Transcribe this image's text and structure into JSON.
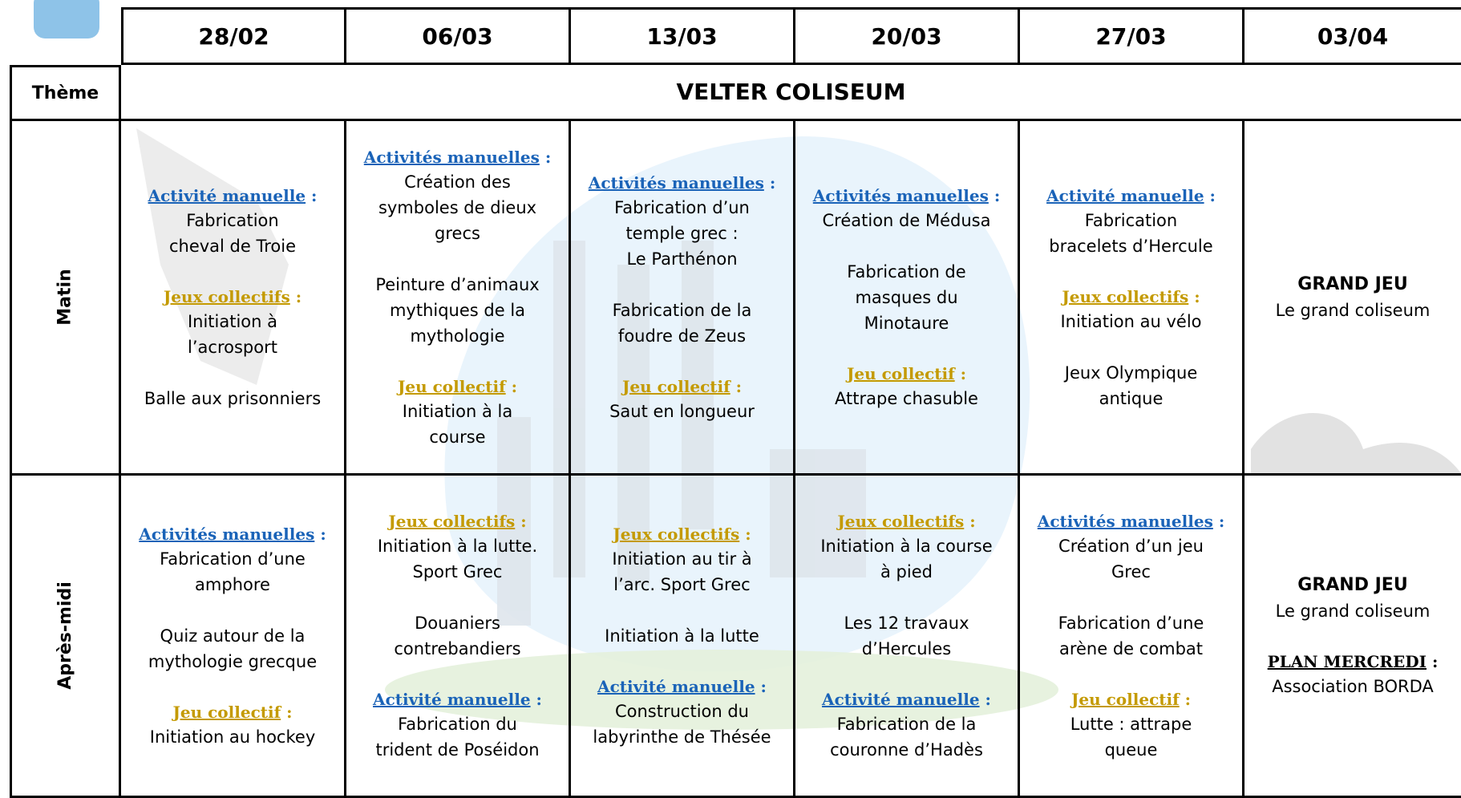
{
  "header": {
    "dates": [
      "28/02",
      "06/03",
      "13/03",
      "20/03",
      "27/03",
      "03/04"
    ]
  },
  "theme": {
    "label": "Thème",
    "value": "VELTER COLISEUM"
  },
  "rows": [
    {
      "label": "Matin",
      "cells": [
        [
          {
            "heading": "Activité manuelle",
            "punct": ":",
            "color": "#1a63b8",
            "lines": [
              "Fabrication",
              "cheval de Troie"
            ]
          },
          {
            "heading": "Jeux collectifs",
            "punct": ":",
            "color": "#c49a00",
            "lines": [
              "Initiation à",
              "l’acrosport"
            ]
          },
          {
            "lines": [
              "Balle aux prisonniers"
            ]
          }
        ],
        [
          {
            "heading": "Activités manuelles",
            "punct": ":",
            "color": "#1a63b8",
            "lines": [
              "Création des",
              "symboles de dieux",
              "grecs"
            ]
          },
          {
            "lines": [
              "Peinture d’animaux",
              "mythiques de la",
              "mythologie"
            ]
          },
          {
            "heading": "Jeu collectif",
            "punct": ":",
            "color": "#c49a00",
            "lines": [
              "Initiation à la",
              "course"
            ]
          }
        ],
        [
          {
            "heading": "Activités manuelles",
            "punct": ":",
            "color": "#1a63b8",
            "lines": [
              "Fabrication d’un",
              "temple grec :",
              "Le Parthénon"
            ]
          },
          {
            "lines": [
              "Fabrication de la",
              "foudre de Zeus"
            ]
          },
          {
            "heading": "Jeu collectif",
            "punct": ":",
            "color": "#c49a00",
            "lines": [
              "Saut en longueur"
            ]
          }
        ],
        [
          {
            "heading": "Activités manuelles",
            "punct": ":",
            "color": "#1a63b8",
            "lines": [
              "Création de Médusa"
            ]
          },
          {
            "lines": [
              "Fabrication de",
              "masques du",
              "Minotaure"
            ]
          },
          {
            "heading": "Jeu collectif",
            "punct": ":",
            "color": "#c49a00",
            "lines": [
              "Attrape chasuble"
            ]
          }
        ],
        [
          {
            "heading": "Activité manuelle",
            "punct": ":",
            "color": "#1a63b8",
            "lines": [
              "Fabrication",
              "bracelets d’Hercule"
            ]
          },
          {
            "heading": "Jeux collectifs",
            "punct": ":",
            "color": "#c49a00",
            "lines": [
              "Initiation au vélo"
            ]
          },
          {
            "lines": [
              "Jeux Olympique",
              "antique"
            ]
          }
        ],
        [
          {
            "title": "GRAND JEU",
            "lines": [
              "Le grand coliseum"
            ]
          }
        ]
      ]
    },
    {
      "label": "Après-midi",
      "cells": [
        [
          {
            "heading": "Activités manuelles",
            "punct": ":",
            "color": "#1a63b8",
            "lines": [
              "Fabrication d’une",
              "amphore"
            ]
          },
          {
            "lines": [
              "Quiz autour de la",
              "mythologie grecque"
            ]
          },
          {
            "heading": "Jeu collectif",
            "punct": ":",
            "color": "#c49a00",
            "lines": [
              "Initiation au hockey"
            ]
          }
        ],
        [
          {
            "heading": "Jeux collectifs",
            "punct": ":",
            "color": "#c49a00",
            "lines": [
              "Initiation à la lutte.",
              "Sport Grec"
            ]
          },
          {
            "lines": [
              "Douaniers",
              "contrebandiers"
            ]
          },
          {
            "heading": "Activité manuelle",
            "punct": ":",
            "color": "#1a63b8",
            "lines": [
              "Fabrication du",
              "trident de Poséidon"
            ]
          }
        ],
        [
          {
            "heading": "Jeux collectifs",
            "punct": ":",
            "color": "#c49a00",
            "lines": [
              "Initiation au tir à",
              "l’arc. Sport Grec"
            ]
          },
          {
            "lines": [
              "Initiation à la lutte"
            ]
          },
          {
            "heading": "Activité manuelle",
            "punct": ":",
            "color": "#1a63b8",
            "lines": [
              "Construction du",
              "labyrinthe de Thésée"
            ]
          }
        ],
        [
          {
            "heading": "Jeux collectifs",
            "punct": ":",
            "color": "#c49a00",
            "lines": [
              "Initiation à la course",
              "à pied"
            ]
          },
          {
            "lines": [
              "Les 12 travaux",
              "d’Hercules"
            ]
          },
          {
            "heading": "Activité manuelle",
            "punct": ":",
            "color": "#1a63b8",
            "lines": [
              "Fabrication de la",
              "couronne d’Hadès"
            ]
          }
        ],
        [
          {
            "heading": "Activités manuelles",
            "punct": ":",
            "color": "#1a63b8",
            "lines": [
              "Création d’un jeu",
              "Grec"
            ]
          },
          {
            "lines": [
              "Fabrication d’une",
              "arène de combat"
            ]
          },
          {
            "heading": "Jeu collectif",
            "punct": ":",
            "color": "#c49a00",
            "lines": [
              "Lutte : attrape",
              "queue"
            ]
          }
        ],
        [
          {
            "title": "GRAND JEU",
            "lines": [
              "Le grand coliseum"
            ]
          },
          {
            "heading": "PLAN MERCREDI",
            "punct": ":",
            "color": "#000000",
            "lines": [
              "Association BORDA"
            ]
          }
        ]
      ]
    }
  ]
}
